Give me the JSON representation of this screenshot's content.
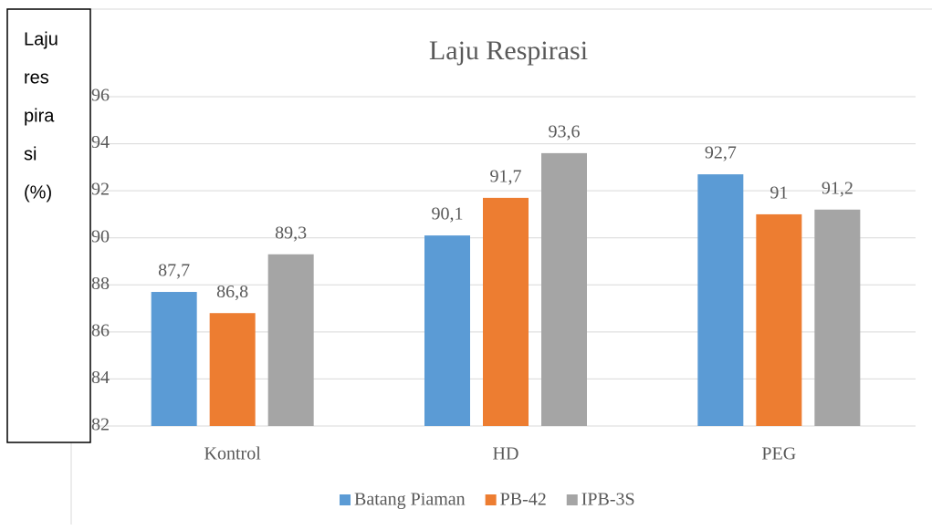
{
  "chart_data": {
    "type": "bar",
    "title": "Laju Respirasi",
    "y_label_lines": [
      "Laju",
      "res",
      "pira",
      "si",
      "(%)"
    ],
    "categories": [
      "Kontrol",
      "HD",
      "PEG"
    ],
    "series": [
      {
        "name": "Batang Piaman",
        "color": "#5b9bd5",
        "values": [
          87.7,
          90.1,
          92.7
        ],
        "value_labels": [
          "87,7",
          "90,1",
          "92,7"
        ]
      },
      {
        "name": "PB-42",
        "color": "#ed7d31",
        "values": [
          86.8,
          91.7,
          91
        ],
        "value_labels": [
          "86,8",
          "91,7",
          "91"
        ]
      },
      {
        "name": "IPB-3S",
        "color": "#a5a5a5",
        "values": [
          89.3,
          93.6,
          91.2
        ],
        "value_labels": [
          "89,3",
          "93,6",
          "91,2"
        ]
      }
    ],
    "ylim": [
      82,
      96
    ],
    "yticks": [
      82,
      84,
      86,
      88,
      90,
      92,
      94,
      96
    ],
    "grid": true,
    "legend": "bottom"
  }
}
